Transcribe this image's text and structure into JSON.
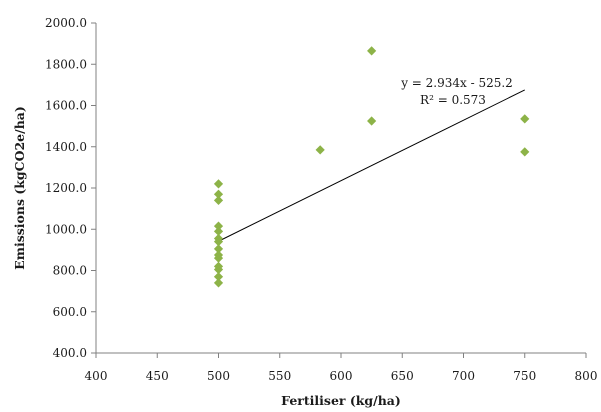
{
  "chart_data": {
    "type": "scatter",
    "title": "",
    "xlabel": "Fertiliser (kg/ha)",
    "ylabel": "Emissions (kgCO2e/ha)",
    "xlim": [
      400,
      800
    ],
    "ylim": [
      400,
      2000
    ],
    "x_ticks": [
      400,
      450,
      500,
      550,
      600,
      650,
      700,
      750,
      800
    ],
    "y_ticks": [
      400,
      600,
      800,
      1000,
      1200,
      1400,
      1600,
      1800,
      2000
    ],
    "x_tick_labels": [
      "400",
      "450",
      "500",
      "550",
      "600",
      "650",
      "700",
      "750",
      "800"
    ],
    "y_tick_labels": [
      "400.0",
      "600.0",
      "800.0",
      "1000.0",
      "1200.0",
      "1400.0",
      "1600.0",
      "1800.0",
      "2000.0"
    ],
    "grid": false,
    "marker_color": "#8DB348",
    "series": [
      {
        "points": [
          {
            "x": 500,
            "y": 1220
          },
          {
            "x": 500,
            "y": 1170
          },
          {
            "x": 500,
            "y": 1140
          },
          {
            "x": 500,
            "y": 1015
          },
          {
            "x": 500,
            "y": 990
          },
          {
            "x": 500,
            "y": 955
          },
          {
            "x": 500,
            "y": 940
          },
          {
            "x": 500,
            "y": 905
          },
          {
            "x": 500,
            "y": 875
          },
          {
            "x": 500,
            "y": 860
          },
          {
            "x": 500,
            "y": 820
          },
          {
            "x": 500,
            "y": 805
          },
          {
            "x": 500,
            "y": 770
          },
          {
            "x": 500,
            "y": 740
          },
          {
            "x": 583,
            "y": 1385
          },
          {
            "x": 625,
            "y": 1865
          },
          {
            "x": 625,
            "y": 1525
          },
          {
            "x": 750,
            "y": 1535
          },
          {
            "x": 750,
            "y": 1375
          }
        ]
      }
    ],
    "trendline": {
      "slope": 2.934,
      "intercept": -525.2,
      "x_start": 500,
      "x_end": 750,
      "equation_label": "y = 2.934x - 525.2",
      "r2_label": "R² = 0.573"
    }
  }
}
